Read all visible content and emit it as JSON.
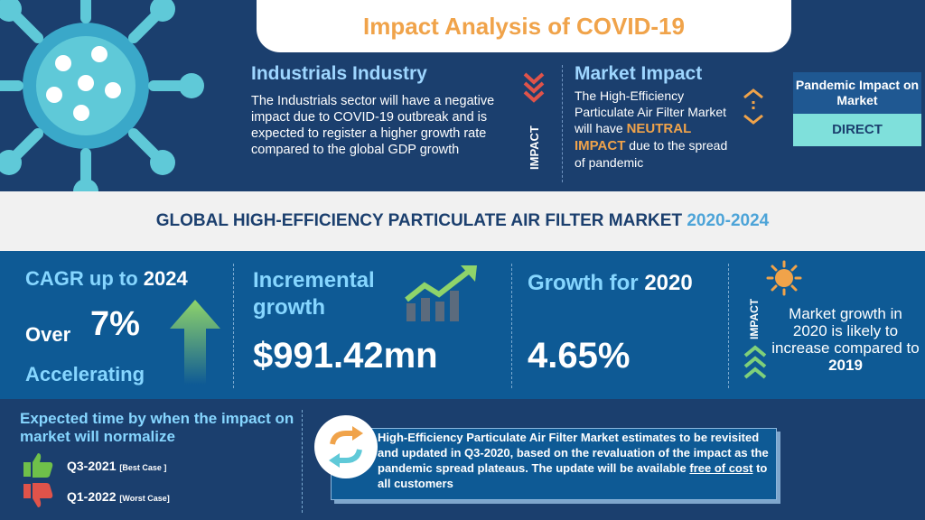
{
  "header": {
    "title": "Impact Analysis of COVID-19"
  },
  "industry": {
    "title": "Industrials Industry",
    "description": "The Industrials sector will have a negative impact due to COVID-19 outbreak and is expected to register a higher growth rate compared to the global GDP growth"
  },
  "market_impact": {
    "impact_label": "IMPACT",
    "title": "Market Impact",
    "desc_before": "The High-Efficiency Particulate Air Filter Market will have",
    "neutral": "NEUTRAL IMPACT",
    "desc_after": "due to the spread of pandemic"
  },
  "pandemic_impact": {
    "label": "Pandemic Impact on Market",
    "value": "DIRECT"
  },
  "banner": {
    "title": "GLOBAL HIGH-EFFICIENCY PARTICULATE AIR FILTER MARKET",
    "years": "2020-2024"
  },
  "cagr": {
    "label": "CAGR up to",
    "year": "2024",
    "over": "Over",
    "value": "7%",
    "trend": "Accelerating"
  },
  "incremental": {
    "label": "Incremental growth",
    "value": "$991.42mn"
  },
  "growth": {
    "label": "Growth for",
    "year": "2020",
    "value": "4.65%"
  },
  "growth_impact": {
    "impact_label": "IMPACT",
    "desc": "Market growth in 2020 is likely to increase compared to",
    "year": "2019"
  },
  "normalize": {
    "title": "Expected time by when the impact on market will normalize",
    "best_case": "Q3-2021",
    "best_tag": "[Best Case ]",
    "worst_case": "Q1-2022",
    "worst_tag": "[Worst Case]"
  },
  "update": {
    "text_before": "High-Efficiency Particulate Air Filter Market estimates to be revisited and updated in Q3-2020, based on the revaluation of the impact as the pandemic spread plateaus. The update will be available",
    "free": "free of cost",
    "text_after": "to all customers"
  },
  "colors": {
    "navy": "#1b3f6e",
    "blue": "#0e5a95",
    "orange": "#f0a34a",
    "teal": "#7fe0db",
    "light_blue": "#86d6ff",
    "green": "#6fc04a",
    "red": "#e0534a"
  },
  "icons": [
    "virus-icon",
    "chevron-down-icon",
    "diamond-arrows-icon",
    "up-arrow-icon",
    "growth-chart-icon",
    "sun-icon",
    "chevron-up-icon",
    "thumbs-up-icon",
    "thumbs-down-icon",
    "refresh-icon"
  ]
}
